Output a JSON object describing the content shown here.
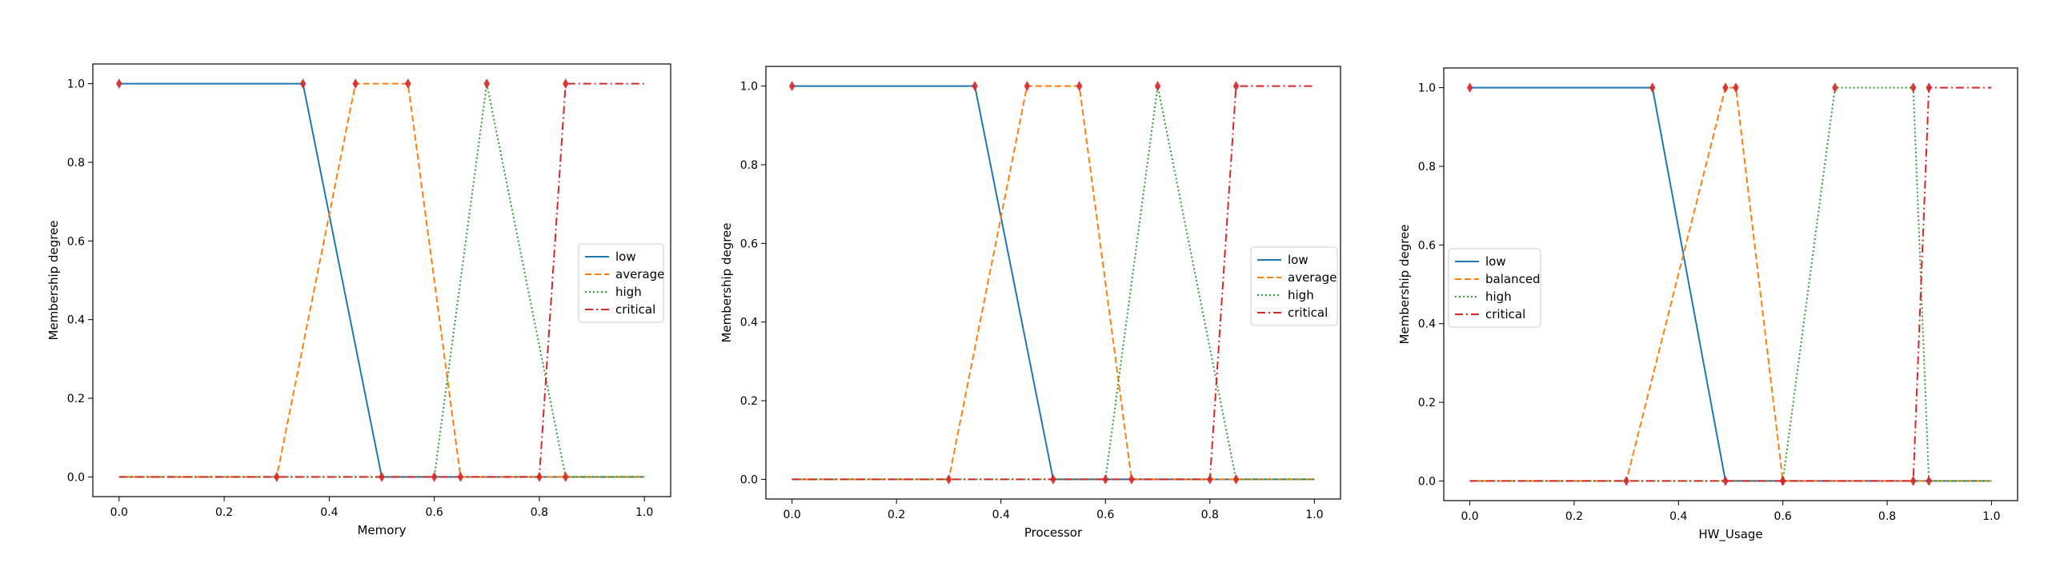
{
  "chart_data": [
    {
      "type": "line",
      "xlabel": "Memory",
      "ylabel": "Membership degree",
      "xlim": [
        -0.05,
        1.05
      ],
      "ylim": [
        -0.05,
        1.05
      ],
      "xticks": [
        0.0,
        0.2,
        0.4,
        0.6,
        0.8,
        1.0
      ],
      "yticks": [
        0.0,
        0.2,
        0.4,
        0.6,
        0.8,
        1.0
      ],
      "xtick_labels": [
        "0.0",
        "0.2",
        "0.4",
        "0.6",
        "0.8",
        "1.0"
      ],
      "ytick_labels": [
        "0.0",
        "0.2",
        "0.4",
        "0.6",
        "0.8",
        "1.0"
      ],
      "legend_position": "center-right",
      "series": [
        {
          "name": "low",
          "color": "#1f77b4",
          "style": "solid",
          "x": [
            0,
            0.35,
            0.5,
            1.0
          ],
          "y": [
            1,
            1,
            0,
            0
          ],
          "markers": [
            [
              0,
              1
            ],
            [
              0.35,
              1
            ],
            [
              0.5,
              0
            ]
          ]
        },
        {
          "name": "average",
          "color": "#ff7f0e",
          "style": "dashed",
          "x": [
            0,
            0.3,
            0.45,
            0.55,
            0.65,
            1.0
          ],
          "y": [
            0,
            0,
            1,
            1,
            0,
            0
          ],
          "markers": [
            [
              0.3,
              0
            ],
            [
              0.45,
              1
            ],
            [
              0.55,
              1
            ],
            [
              0.65,
              0
            ]
          ]
        },
        {
          "name": "high",
          "color": "#2ca02c",
          "style": "dotted",
          "x": [
            0,
            0.6,
            0.7,
            0.85,
            1.0
          ],
          "y": [
            0,
            0,
            1,
            0,
            0
          ],
          "markers": [
            [
              0.6,
              0
            ],
            [
              0.7,
              1
            ],
            [
              0.85,
              0
            ]
          ]
        },
        {
          "name": "critical",
          "color": "#d62728",
          "style": "dashdot",
          "x": [
            0,
            0.8,
            0.85,
            1.0
          ],
          "y": [
            0,
            0,
            1,
            1
          ],
          "markers": [
            [
              0.8,
              0
            ],
            [
              0.85,
              1
            ]
          ]
        }
      ]
    },
    {
      "type": "line",
      "xlabel": "Processor",
      "ylabel": "Membership degree",
      "xlim": [
        -0.05,
        1.05
      ],
      "ylim": [
        -0.05,
        1.05
      ],
      "xticks": [
        0.0,
        0.2,
        0.4,
        0.6,
        0.8,
        1.0
      ],
      "yticks": [
        0.0,
        0.2,
        0.4,
        0.6,
        0.8,
        1.0
      ],
      "xtick_labels": [
        "0.0",
        "0.2",
        "0.4",
        "0.6",
        "0.8",
        "1.0"
      ],
      "ytick_labels": [
        "0.0",
        "0.2",
        "0.4",
        "0.6",
        "0.8",
        "1.0"
      ],
      "legend_position": "center-right",
      "series": [
        {
          "name": "low",
          "color": "#1f77b4",
          "style": "solid",
          "x": [
            0,
            0.35,
            0.5,
            1.0
          ],
          "y": [
            1,
            1,
            0,
            0
          ],
          "markers": [
            [
              0,
              1
            ],
            [
              0.35,
              1
            ],
            [
              0.5,
              0
            ]
          ]
        },
        {
          "name": "average",
          "color": "#ff7f0e",
          "style": "dashed",
          "x": [
            0,
            0.3,
            0.45,
            0.55,
            0.65,
            1.0
          ],
          "y": [
            0,
            0,
            1,
            1,
            0,
            0
          ],
          "markers": [
            [
              0.3,
              0
            ],
            [
              0.45,
              1
            ],
            [
              0.55,
              1
            ],
            [
              0.65,
              0
            ]
          ]
        },
        {
          "name": "high",
          "color": "#2ca02c",
          "style": "dotted",
          "x": [
            0,
            0.6,
            0.7,
            0.85,
            1.0
          ],
          "y": [
            0,
            0,
            1,
            0,
            0
          ],
          "markers": [
            [
              0.6,
              0
            ],
            [
              0.7,
              1
            ],
            [
              0.85,
              0
            ]
          ]
        },
        {
          "name": "critical",
          "color": "#d62728",
          "style": "dashdot",
          "x": [
            0,
            0.8,
            0.85,
            1.0
          ],
          "y": [
            0,
            0,
            1,
            1
          ],
          "markers": [
            [
              0.8,
              0
            ],
            [
              0.85,
              1
            ]
          ]
        }
      ]
    },
    {
      "type": "line",
      "xlabel": "HW_Usage",
      "ylabel": "Membership degree",
      "xlim": [
        -0.05,
        1.05
      ],
      "ylim": [
        -0.05,
        1.05
      ],
      "xticks": [
        0.0,
        0.2,
        0.4,
        0.6,
        0.8,
        1.0
      ],
      "yticks": [
        0.0,
        0.2,
        0.4,
        0.6,
        0.8,
        1.0
      ],
      "xtick_labels": [
        "0.0",
        "0.2",
        "0.4",
        "0.6",
        "0.8",
        "1.0"
      ],
      "ytick_labels": [
        "0.0",
        "0.2",
        "0.4",
        "0.6",
        "0.8",
        "1.0"
      ],
      "legend_position": "center-left",
      "series": [
        {
          "name": "low",
          "color": "#1f77b4",
          "style": "solid",
          "x": [
            0,
            0.35,
            0.49,
            1.0
          ],
          "y": [
            1,
            1,
            0,
            0
          ],
          "markers": [
            [
              0,
              1
            ],
            [
              0.35,
              1
            ],
            [
              0.49,
              0
            ]
          ]
        },
        {
          "name": "balanced",
          "color": "#ff7f0e",
          "style": "dashed",
          "x": [
            0,
            0.3,
            0.49,
            0.51,
            0.6,
            1.0
          ],
          "y": [
            0,
            0,
            1,
            1,
            0,
            0
          ],
          "markers": [
            [
              0.3,
              0
            ],
            [
              0.49,
              1
            ],
            [
              0.51,
              1
            ],
            [
              0.6,
              0
            ]
          ]
        },
        {
          "name": "high",
          "color": "#2ca02c",
          "style": "dotted",
          "x": [
            0,
            0.6,
            0.7,
            0.85,
            0.88,
            1.0
          ],
          "y": [
            0,
            0,
            1,
            1,
            0,
            0
          ],
          "markers": [
            [
              0.6,
              0
            ],
            [
              0.7,
              1
            ],
            [
              0.85,
              1
            ],
            [
              0.88,
              0
            ]
          ]
        },
        {
          "name": "critical",
          "color": "#d62728",
          "style": "dashdot",
          "x": [
            0,
            0.85,
            0.88,
            1.0
          ],
          "y": [
            0,
            0,
            1,
            1
          ],
          "markers": [
            [
              0.85,
              0
            ],
            [
              0.88,
              1
            ]
          ]
        }
      ]
    }
  ]
}
